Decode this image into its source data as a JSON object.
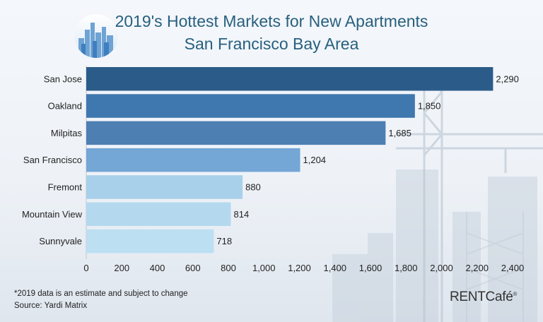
{
  "header": {
    "title_line1": "2019's Hottest Markets for New Apartments",
    "title_line2": "San Francisco Bay Area"
  },
  "footer": {
    "note": "*2019 data is an estimate and subject to change",
    "source": "Source: Yardi Matrix",
    "brand": "RENTCafé",
    "brand_mark": "®"
  },
  "logo": {
    "icon": "city-skyline-icon"
  },
  "colors": {
    "title": "#27607f",
    "bars": [
      "#2b5b89",
      "#3f78ae",
      "#4d7fb3",
      "#74a6d6",
      "#a8d0ea",
      "#b4d9ef",
      "#bcdff2"
    ]
  },
  "chart_data": {
    "type": "bar",
    "orientation": "horizontal",
    "categories": [
      "San Jose",
      "Oakland",
      "Milpitas",
      "San Francisco",
      "Fremont",
      "Mountain View",
      "Sunnyvale"
    ],
    "values": [
      2290,
      1850,
      1685,
      1204,
      880,
      814,
      718
    ],
    "value_labels": [
      "2,290",
      "1,850",
      "1,685",
      "1,204",
      "880",
      "814",
      "718"
    ],
    "xlim": [
      0,
      2400
    ],
    "xticks": [
      0,
      200,
      400,
      600,
      800,
      1000,
      1200,
      1400,
      1600,
      1800,
      2000,
      2200,
      2400
    ],
    "xtick_labels": [
      "0",
      "200",
      "400",
      "600",
      "800",
      "1,000",
      "1,200",
      "1,400",
      "1,600",
      "1,800",
      "2,000",
      "2,200",
      "2,400"
    ],
    "title": "2019's Hottest Markets for New Apartments",
    "subtitle": "San Francisco Bay Area",
    "xlabel": "",
    "ylabel": "",
    "grid": false,
    "legend": "none"
  }
}
